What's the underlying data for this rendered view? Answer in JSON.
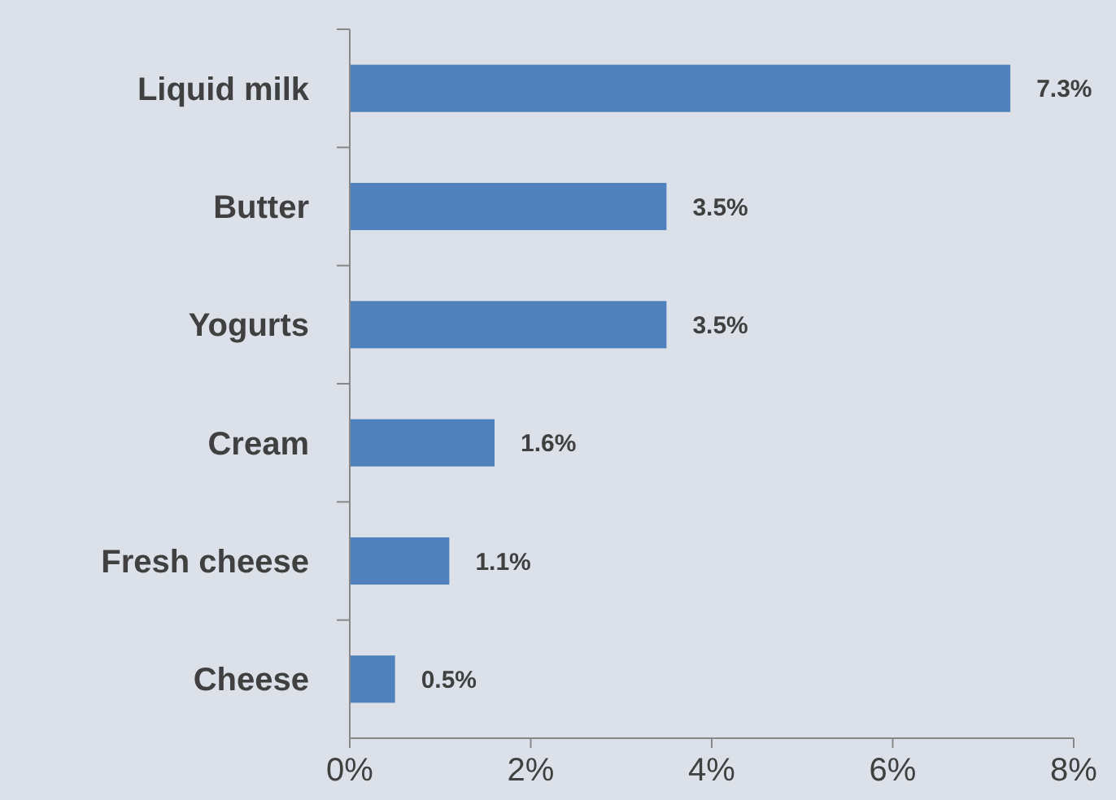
{
  "chart_data": {
    "type": "bar",
    "orientation": "horizontal",
    "categories": [
      "Liquid milk",
      "Butter",
      "Yogurts",
      "Cream",
      "Fresh cheese",
      "Cheese"
    ],
    "values": [
      7.3,
      3.5,
      3.5,
      1.6,
      1.1,
      0.5
    ],
    "value_labels": [
      "7.3%",
      "3.5%",
      "3.5%",
      "1.6%",
      "1.1%",
      "0.5%"
    ],
    "color": "#4f81bd",
    "xlim": [
      0,
      8
    ],
    "xticks": [
      {
        "value": 0,
        "label": "0%"
      },
      {
        "value": 2,
        "label": "2%"
      },
      {
        "value": 4,
        "label": "4%"
      },
      {
        "value": 6,
        "label": "6%"
      },
      {
        "value": 8,
        "label": "8%"
      }
    ],
    "grid": false
  }
}
